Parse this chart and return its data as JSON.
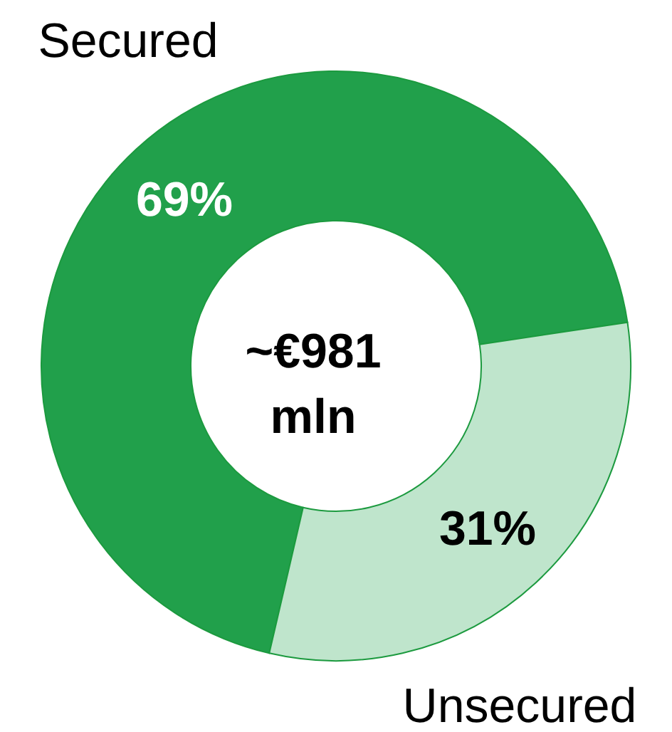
{
  "chart_data": {
    "type": "donut",
    "categories": [
      "Secured",
      "Unsecured"
    ],
    "values": [
      69,
      31
    ],
    "colors": [
      "#21a04b",
      "#bfe5cc"
    ],
    "value_labels": [
      "69%",
      "31%"
    ],
    "annotations": [
      "~€981 mln"
    ]
  }
}
